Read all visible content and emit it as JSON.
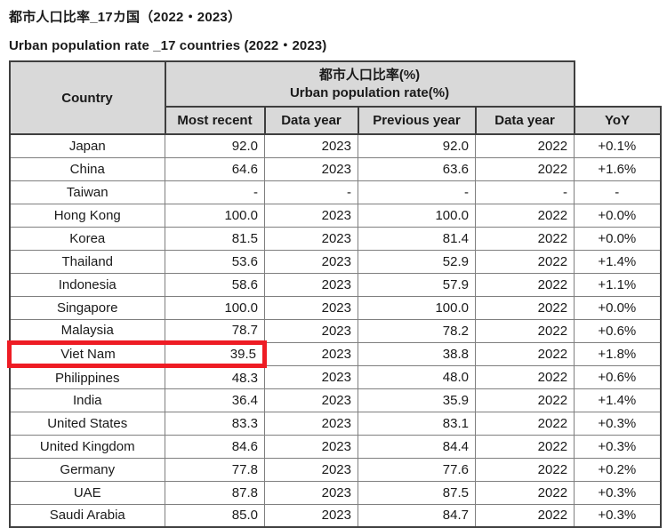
{
  "page": {
    "title_ja": "都市人口比率_17カ国（2022・2023）",
    "title_en": "Urban population rate _17 countries (2022・2023)"
  },
  "table": {
    "header": {
      "country": "Country",
      "group_ja": "都市人口比率(%)",
      "group_en": "Urban population rate(%)",
      "columns": [
        "Most recent",
        "Data year",
        "Previous year",
        "Data year",
        "YoY"
      ]
    },
    "rows": [
      {
        "country": "Japan",
        "most_recent": "92.0",
        "data_year": "2023",
        "previous_year": "92.0",
        "prev_data_year": "2022",
        "yoy": "+0.1%",
        "highlight": false
      },
      {
        "country": "China",
        "most_recent": "64.6",
        "data_year": "2023",
        "previous_year": "63.6",
        "prev_data_year": "2022",
        "yoy": "+1.6%",
        "highlight": false
      },
      {
        "country": "Taiwan",
        "most_recent": "-",
        "data_year": "-",
        "previous_year": "-",
        "prev_data_year": "-",
        "yoy": "-",
        "highlight": false
      },
      {
        "country": "Hong Kong",
        "most_recent": "100.0",
        "data_year": "2023",
        "previous_year": "100.0",
        "prev_data_year": "2022",
        "yoy": "+0.0%",
        "highlight": false
      },
      {
        "country": "Korea",
        "most_recent": "81.5",
        "data_year": "2023",
        "previous_year": "81.4",
        "prev_data_year": "2022",
        "yoy": "+0.0%",
        "highlight": false
      },
      {
        "country": "Thailand",
        "most_recent": "53.6",
        "data_year": "2023",
        "previous_year": "52.9",
        "prev_data_year": "2022",
        "yoy": "+1.4%",
        "highlight": false
      },
      {
        "country": "Indonesia",
        "most_recent": "58.6",
        "data_year": "2023",
        "previous_year": "57.9",
        "prev_data_year": "2022",
        "yoy": "+1.1%",
        "highlight": false
      },
      {
        "country": "Singapore",
        "most_recent": "100.0",
        "data_year": "2023",
        "previous_year": "100.0",
        "prev_data_year": "2022",
        "yoy": "+0.0%",
        "highlight": false
      },
      {
        "country": "Malaysia",
        "most_recent": "78.7",
        "data_year": "2023",
        "previous_year": "78.2",
        "prev_data_year": "2022",
        "yoy": "+0.6%",
        "highlight": false
      },
      {
        "country": "Viet Nam",
        "most_recent": "39.5",
        "data_year": "2023",
        "previous_year": "38.8",
        "prev_data_year": "2022",
        "yoy": "+1.8%",
        "highlight": true
      },
      {
        "country": "Philippines",
        "most_recent": "48.3",
        "data_year": "2023",
        "previous_year": "48.0",
        "prev_data_year": "2022",
        "yoy": "+0.6%",
        "highlight": false
      },
      {
        "country": "India",
        "most_recent": "36.4",
        "data_year": "2023",
        "previous_year": "35.9",
        "prev_data_year": "2022",
        "yoy": "+1.4%",
        "highlight": false
      },
      {
        "country": "United States",
        "most_recent": "83.3",
        "data_year": "2023",
        "previous_year": "83.1",
        "prev_data_year": "2022",
        "yoy": "+0.3%",
        "highlight": false
      },
      {
        "country": "United Kingdom",
        "most_recent": "84.6",
        "data_year": "2023",
        "previous_year": "84.4",
        "prev_data_year": "2022",
        "yoy": "+0.3%",
        "highlight": false
      },
      {
        "country": "Germany",
        "most_recent": "77.8",
        "data_year": "2023",
        "previous_year": "77.6",
        "prev_data_year": "2022",
        "yoy": "+0.2%",
        "highlight": false
      },
      {
        "country": "UAE",
        "most_recent": "87.8",
        "data_year": "2023",
        "previous_year": "87.5",
        "prev_data_year": "2022",
        "yoy": "+0.3%",
        "highlight": false
      },
      {
        "country": "Saudi Arabia",
        "most_recent": "85.0",
        "data_year": "2023",
        "previous_year": "84.7",
        "prev_data_year": "2022",
        "yoy": "+0.3%",
        "highlight": false
      }
    ]
  },
  "colors": {
    "header_bg": "#d9d9d9",
    "border_inner": "#7f7f7f",
    "border_outer": "#3f3f3f",
    "highlight_red": "#ee1c24",
    "text": "#1a1a1a"
  }
}
